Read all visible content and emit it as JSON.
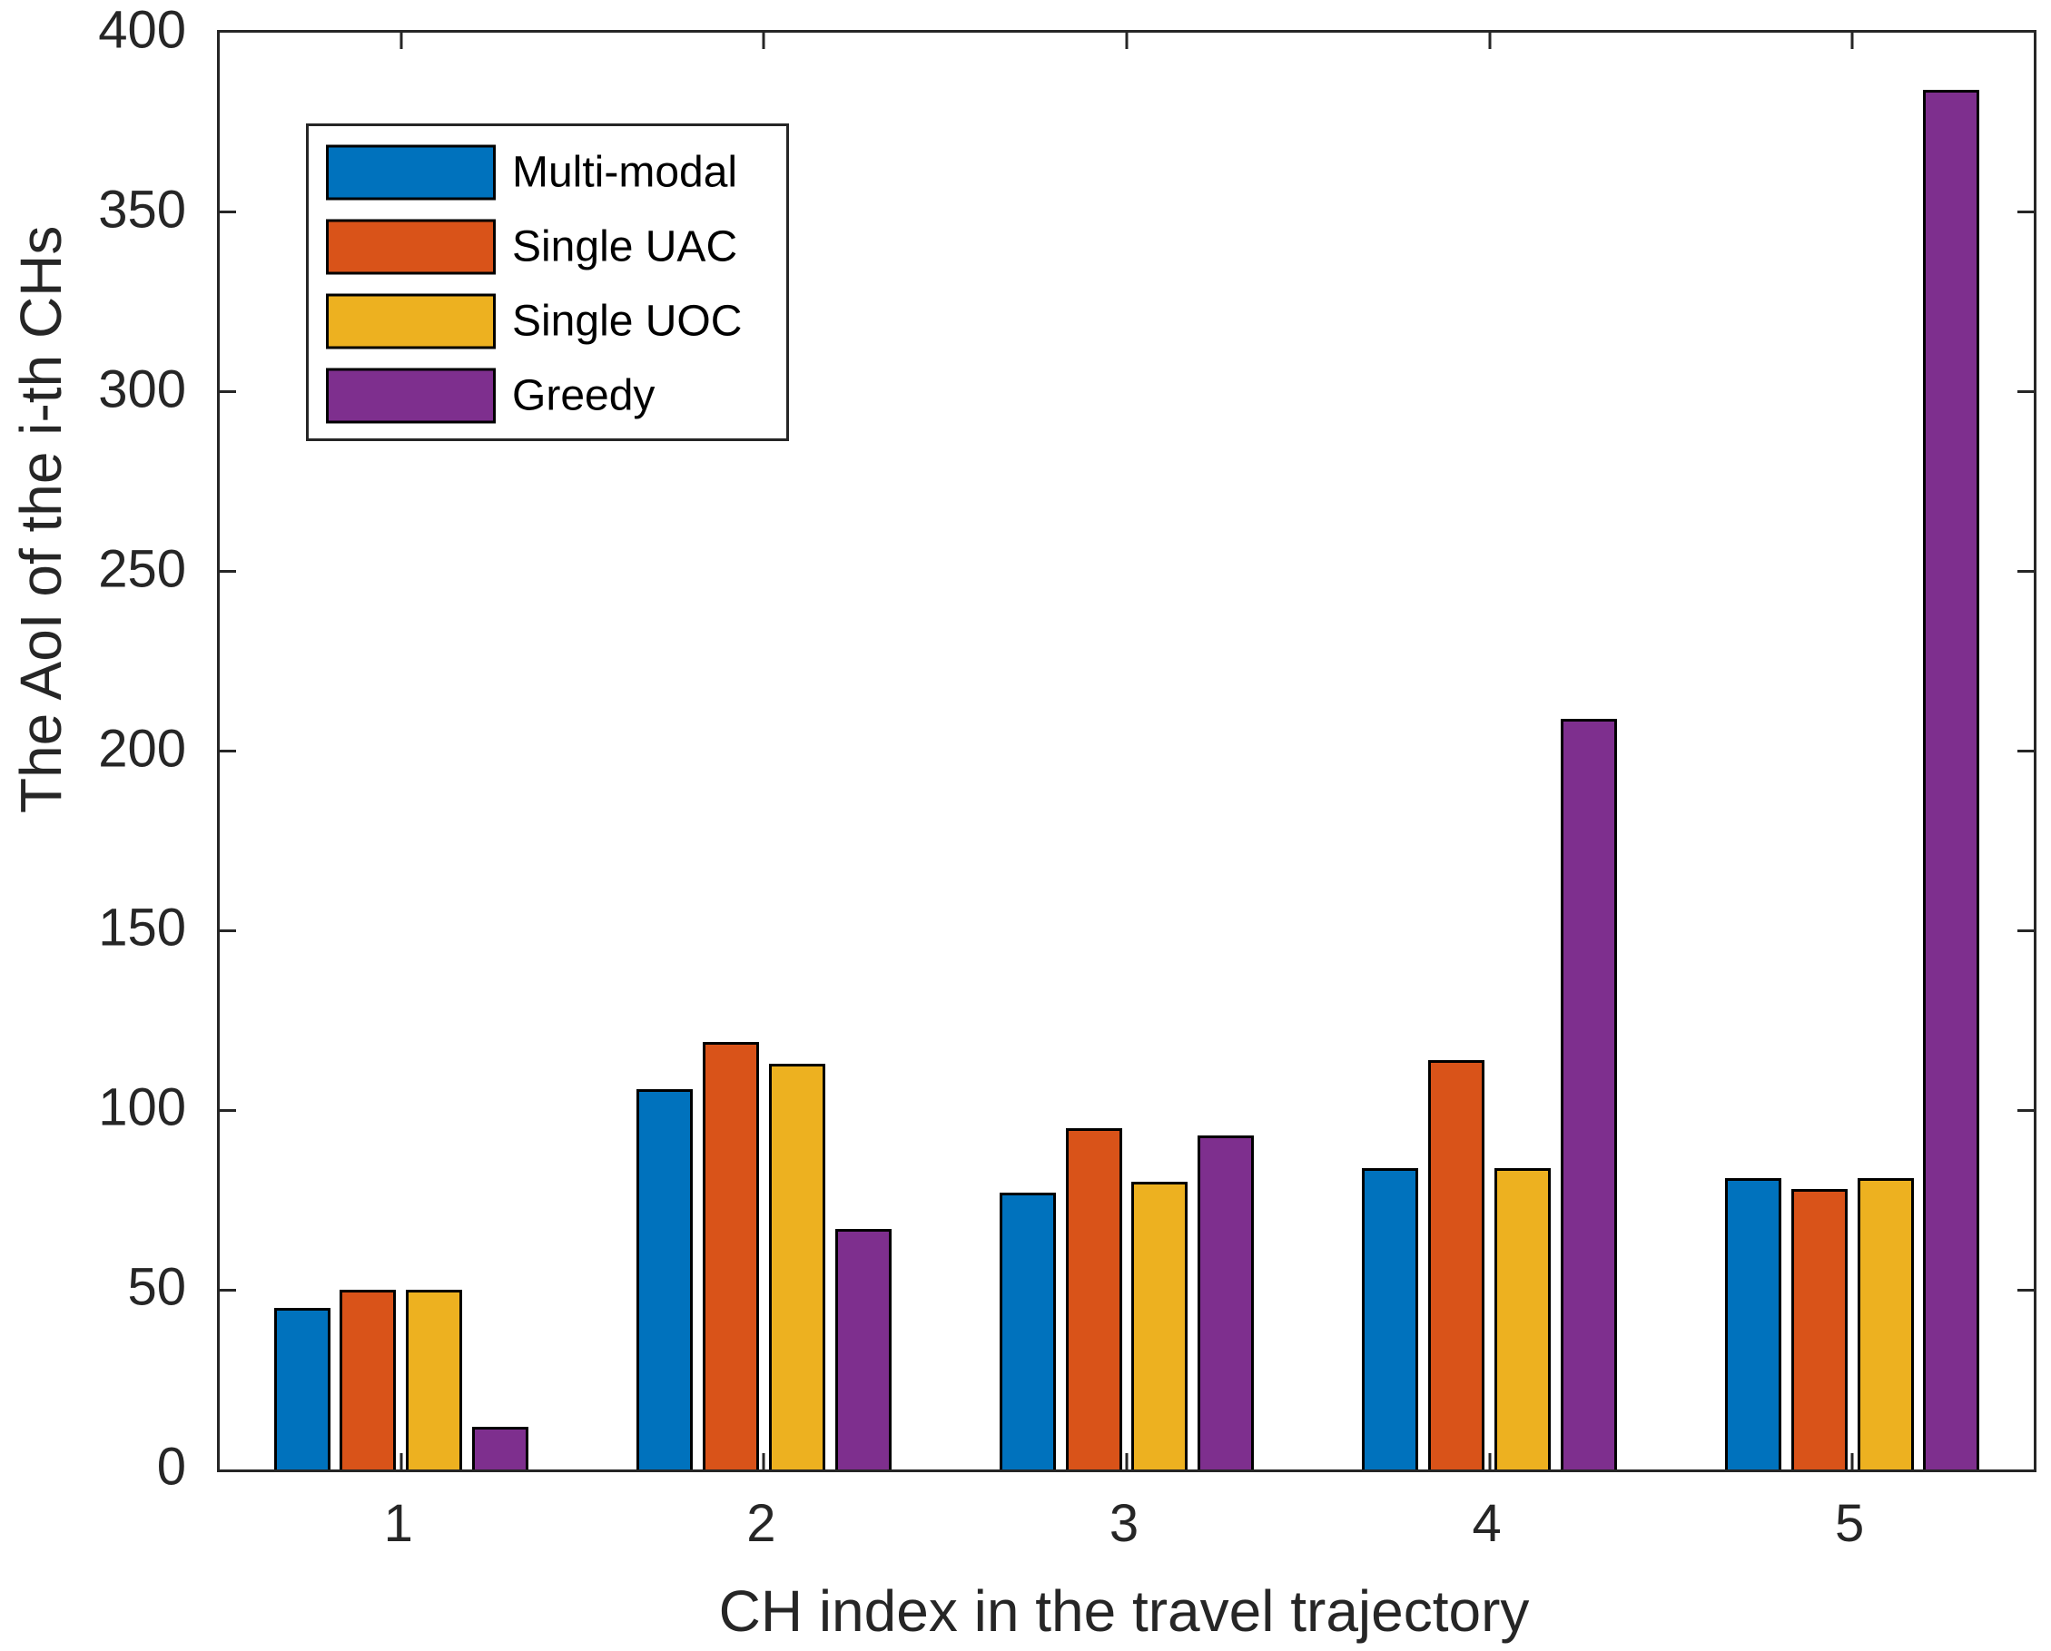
{
  "figure": {
    "xlabel": "CH index in the travel trajectory",
    "ylabel": "The AoI of the i-th CHs"
  },
  "chart_data": {
    "type": "bar",
    "title": "",
    "xlabel": "CH index in the travel trajectory",
    "ylabel": "The AoI of the i-th CHs",
    "categories": [
      "1",
      "2",
      "3",
      "4",
      "5"
    ],
    "series": [
      {
        "name": "Multi-modal",
        "color": "#0072BD",
        "values": [
          45,
          106,
          77,
          84,
          81
        ]
      },
      {
        "name": "Single UAC",
        "color": "#D95319",
        "values": [
          50,
          119,
          95,
          114,
          78
        ]
      },
      {
        "name": "Single UOC",
        "color": "#EDB120",
        "values": [
          50,
          113,
          80,
          84,
          81
        ]
      },
      {
        "name": "Greedy",
        "color": "#7E2F8E",
        "values": [
          12,
          67,
          93,
          209,
          384
        ]
      }
    ],
    "ylim": [
      0,
      400
    ],
    "yticks": [
      0,
      50,
      100,
      150,
      200,
      250,
      300,
      350,
      400
    ],
    "legend_entries": [
      "Multi-modal",
      "Single UAC",
      "Single UOC",
      "Greedy"
    ],
    "legend_position": "top-left",
    "grid": false,
    "bar_edge_color": "#000000",
    "axis_color": "#262626"
  }
}
